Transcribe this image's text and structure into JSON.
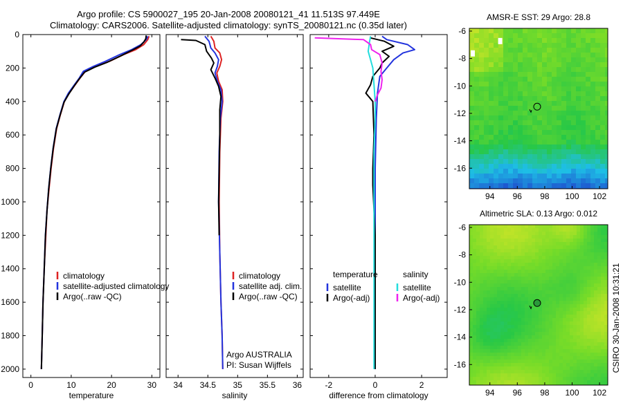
{
  "header": {
    "line1": "Argo profile: CS 5900027_195 20-Jan-2008 20080121_41 11.513S 97.449E",
    "line2": "Climatology: CARS2006. Satellite-adjusted climatology: synTS_20080121.nc (0.35d later)"
  },
  "side_label": "CSIRO 30-Jan-2008 10:31:21",
  "colors": {
    "climatology": "#dd2222",
    "satellite": "#2233dd",
    "argo": "#000000",
    "satellite_diff_s": "#22dddd",
    "argo_adj_s": "#ee22ee"
  },
  "chart_data": [
    {
      "id": "temperature",
      "type": "line",
      "xlabel": "temperature",
      "ylabel": "",
      "xlim": [
        -2,
        32
      ],
      "ylim": [
        2050,
        0
      ],
      "xticks": [
        0,
        10,
        20,
        30
      ],
      "xtick_labels": [
        "0",
        "10",
        "20",
        "30"
      ],
      "yticks": [
        0,
        200,
        400,
        600,
        800,
        1000,
        1200,
        1400,
        1600,
        1800,
        2000
      ],
      "ytick_labels": [
        "0",
        "200",
        "400",
        "600",
        "800",
        "1000",
        "1200",
        "1400",
        "1600",
        "1800",
        "2000"
      ],
      "legend": [
        "climatology",
        "satellite-adjusted climatology",
        "Argo(..raw -QC)"
      ],
      "series": [
        {
          "name": "climatology",
          "color": "#dd2222",
          "points": [
            [
              29.3,
              10
            ],
            [
              29,
              30
            ],
            [
              28,
              60
            ],
            [
              26,
              90
            ],
            [
              23,
              120
            ],
            [
              19.5,
              160
            ],
            [
              16,
              190
            ],
            [
              13.5,
              220
            ],
            [
              12.2,
              260
            ],
            [
              11,
              300
            ],
            [
              9.5,
              350
            ],
            [
              8.3,
              400
            ],
            [
              7.3,
              480
            ],
            [
              6.4,
              560
            ],
            [
              5.6,
              680
            ],
            [
              5,
              800
            ],
            [
              4.5,
              920
            ],
            [
              4,
              1050
            ],
            [
              3.7,
              1200
            ],
            [
              3.3,
              1400
            ],
            [
              3,
              1600
            ],
            [
              2.8,
              1800
            ],
            [
              2.6,
              2000
            ]
          ]
        },
        {
          "name": "satellite-adjusted climatology",
          "color": "#2233dd",
          "points": [
            [
              29,
              10
            ],
            [
              28.6,
              30
            ],
            [
              27.3,
              60
            ],
            [
              25,
              90
            ],
            [
              22,
              120
            ],
            [
              18.5,
              160
            ],
            [
              15.5,
              190
            ],
            [
              13,
              220
            ],
            [
              12,
              260
            ],
            [
              10.8,
              300
            ],
            [
              9.3,
              350
            ],
            [
              8.2,
              400
            ],
            [
              7.2,
              480
            ],
            [
              6.3,
              560
            ],
            [
              5.5,
              680
            ],
            [
              4.9,
              800
            ],
            [
              4.4,
              920
            ],
            [
              4,
              1050
            ],
            [
              3.6,
              1200
            ],
            [
              3.3,
              1400
            ],
            [
              3,
              1600
            ],
            [
              2.8,
              1800
            ],
            [
              2.6,
              2000
            ]
          ]
        },
        {
          "name": "Argo(..raw -QC)",
          "color": "#000000",
          "points": [
            [
              28.6,
              5
            ],
            [
              28.5,
              25
            ],
            [
              28,
              45
            ],
            [
              27,
              70
            ],
            [
              25,
              95
            ],
            [
              22.5,
              125
            ],
            [
              19,
              165
            ],
            [
              15.8,
              195
            ],
            [
              13.3,
              225
            ],
            [
              12,
              265
            ],
            [
              10.8,
              305
            ],
            [
              9.4,
              355
            ],
            [
              8.2,
              405
            ],
            [
              7.2,
              485
            ],
            [
              6.3,
              565
            ],
            [
              5.5,
              685
            ],
            [
              4.9,
              805
            ],
            [
              4.4,
              925
            ],
            [
              4,
              1055
            ],
            [
              3.6,
              1205
            ],
            [
              3.3,
              1405
            ],
            [
              3,
              1605
            ],
            [
              2.8,
              1805
            ],
            [
              2.6,
              2000
            ]
          ]
        }
      ]
    },
    {
      "id": "salinity",
      "type": "line",
      "xlabel": "salinity",
      "ylabel": "",
      "xlim": [
        33.8,
        36.1
      ],
      "ylim": [
        2050,
        0
      ],
      "xticks": [
        34,
        34.5,
        35,
        35.5,
        36
      ],
      "xtick_labels": [
        "34",
        "34.5",
        "35",
        "35.5",
        "36"
      ],
      "legend": [
        "climatology",
        "satellite adj. clim.",
        "Argo(..raw -QC)"
      ],
      "annotations": [
        "Argo AUSTRALIA",
        "PI: Susan Wijffels"
      ],
      "series": [
        {
          "name": "climatology",
          "color": "#dd2222",
          "points": [
            [
              34.55,
              10
            ],
            [
              34.6,
              40
            ],
            [
              34.62,
              80
            ],
            [
              34.7,
              110
            ],
            [
              34.73,
              150
            ],
            [
              34.7,
              190
            ],
            [
              34.65,
              230
            ],
            [
              34.68,
              280
            ],
            [
              34.74,
              330
            ],
            [
              34.75,
              400
            ],
            [
              34.72,
              500
            ],
            [
              34.7,
              700
            ],
            [
              34.69,
              1000
            ],
            [
              34.7,
              1300
            ],
            [
              34.72,
              1600
            ],
            [
              34.74,
              1800
            ],
            [
              34.75,
              2000
            ]
          ]
        },
        {
          "name": "satellite adj. clim.",
          "color": "#2233dd",
          "points": [
            [
              34.45,
              10
            ],
            [
              34.52,
              40
            ],
            [
              34.55,
              80
            ],
            [
              34.62,
              110
            ],
            [
              34.68,
              150
            ],
            [
              34.66,
              190
            ],
            [
              34.62,
              230
            ],
            [
              34.66,
              280
            ],
            [
              34.72,
              330
            ],
            [
              34.74,
              400
            ],
            [
              34.71,
              500
            ],
            [
              34.69,
              700
            ],
            [
              34.68,
              1000
            ],
            [
              34.7,
              1300
            ],
            [
              34.72,
              1600
            ],
            [
              34.74,
              1800
            ],
            [
              34.75,
              2000
            ]
          ]
        },
        {
          "name": "Argo(..raw -QC)",
          "color": "#000000",
          "points": [
            [
              34.05,
              30
            ],
            [
              34.3,
              35
            ],
            [
              34.45,
              60
            ],
            [
              34.48,
              100
            ],
            [
              34.56,
              140
            ],
            [
              34.6,
              170
            ],
            [
              34.55,
              210
            ],
            [
              34.62,
              260
            ],
            [
              34.68,
              310
            ],
            [
              34.72,
              370
            ],
            [
              34.7,
              450
            ],
            [
              34.7,
              600
            ],
            [
              34.69,
              800
            ],
            [
              34.68,
              1000
            ],
            [
              34.69,
              1200
            ]
          ]
        }
      ]
    },
    {
      "id": "difference",
      "type": "line",
      "xlabel": "difference from climatology",
      "ylabel": "",
      "xlim": [
        -2.8,
        3.1
      ],
      "ylim": [
        2050,
        0
      ],
      "xticks": [
        -2,
        0,
        2
      ],
      "xtick_labels": [
        "-2",
        "0",
        "2"
      ],
      "legend_groups": [
        {
          "title": "temperature",
          "items": [
            "satellite",
            "Argo(-adj)"
          ]
        },
        {
          "title": "salinity",
          "items": [
            "satellite",
            "Argo(-adj)"
          ]
        }
      ],
      "series": [
        {
          "name": "temperature satellite",
          "color": "#2233dd",
          "points": [
            [
              0.3,
              10
            ],
            [
              0.5,
              30
            ],
            [
              1.4,
              60
            ],
            [
              1.7,
              90
            ],
            [
              1.2,
              110
            ],
            [
              0.8,
              150
            ],
            [
              0.5,
              200
            ],
            [
              0.2,
              250
            ],
            [
              0.1,
              350
            ],
            [
              0.05,
              500
            ],
            [
              0,
              800
            ],
            [
              0,
              1200
            ],
            [
              0,
              2000
            ]
          ]
        },
        {
          "name": "temperature Argo(-adj)",
          "color": "#000000",
          "points": [
            [
              -0.2,
              20
            ],
            [
              0.4,
              40
            ],
            [
              0.8,
              70
            ],
            [
              0.3,
              100
            ],
            [
              0.6,
              130
            ],
            [
              0.3,
              170
            ],
            [
              0.2,
              200
            ],
            [
              -0.1,
              250
            ],
            [
              -0.2,
              300
            ],
            [
              -0.4,
              350
            ],
            [
              -0.1,
              400
            ],
            [
              -0.05,
              600
            ],
            [
              -0.1,
              800
            ],
            [
              -0.1,
              900
            ],
            [
              0,
              1200
            ],
            [
              0,
              1600
            ],
            [
              0,
              2000
            ]
          ]
        },
        {
          "name": "salinity satellite",
          "color": "#22dddd",
          "points": [
            [
              -0.2,
              10
            ],
            [
              -0.25,
              50
            ],
            [
              -0.3,
              100
            ],
            [
              -0.2,
              150
            ],
            [
              -0.1,
              200
            ],
            [
              -0.05,
              300
            ],
            [
              0,
              400
            ],
            [
              0,
              500
            ],
            [
              -0.05,
              700
            ],
            [
              -0.05,
              1000
            ],
            [
              -0.05,
              1400
            ],
            [
              -0.05,
              1800
            ],
            [
              -0.05,
              2000
            ]
          ]
        },
        {
          "name": "salinity Argo(-adj)",
          "color": "#ee22ee",
          "points": [
            [
              -2.6,
              20
            ],
            [
              -0.5,
              30
            ],
            [
              -0.2,
              60
            ],
            [
              -0.15,
              90
            ],
            [
              0.2,
              120
            ],
            [
              0.3,
              170
            ],
            [
              0.25,
              220
            ],
            [
              0.3,
              270
            ],
            [
              0.25,
              320
            ],
            [
              0.1,
              360
            ],
            [
              0,
              400
            ]
          ]
        }
      ]
    },
    {
      "id": "sst_map",
      "type": "heatmap",
      "title": "AMSR-E SST: 29 Argo: 28.8",
      "xlim": [
        92.5,
        102.6
      ],
      "ylim": [
        -17.5,
        -5.8
      ],
      "xticks": [
        94,
        96,
        98,
        100,
        102
      ],
      "xtick_labels": [
        "94",
        "96",
        "98",
        "100",
        "102"
      ],
      "yticks": [
        -6,
        -8,
        -10,
        -12,
        -14,
        -16
      ],
      "ytick_labels": [
        "-6",
        "-8",
        "-10",
        "-12",
        "-14",
        "-16"
      ],
      "marker": {
        "lon": 97.449,
        "lat": -11.513
      }
    },
    {
      "id": "sla_map",
      "type": "heatmap",
      "title": "Altimetric SLA: 0.13 Argo: 0.012",
      "xlim": [
        92.5,
        102.6
      ],
      "ylim": [
        -17.5,
        -5.8
      ],
      "xticks": [
        94,
        96,
        98,
        100,
        102
      ],
      "xtick_labels": [
        "94",
        "96",
        "98",
        "100",
        "102"
      ],
      "yticks": [
        -6,
        -8,
        -10,
        -12,
        -14,
        -16
      ],
      "ytick_labels": [
        "-6",
        "-8",
        "-10",
        "-12",
        "-14",
        "-16"
      ],
      "marker": {
        "lon": 97.449,
        "lat": -11.513
      }
    }
  ]
}
